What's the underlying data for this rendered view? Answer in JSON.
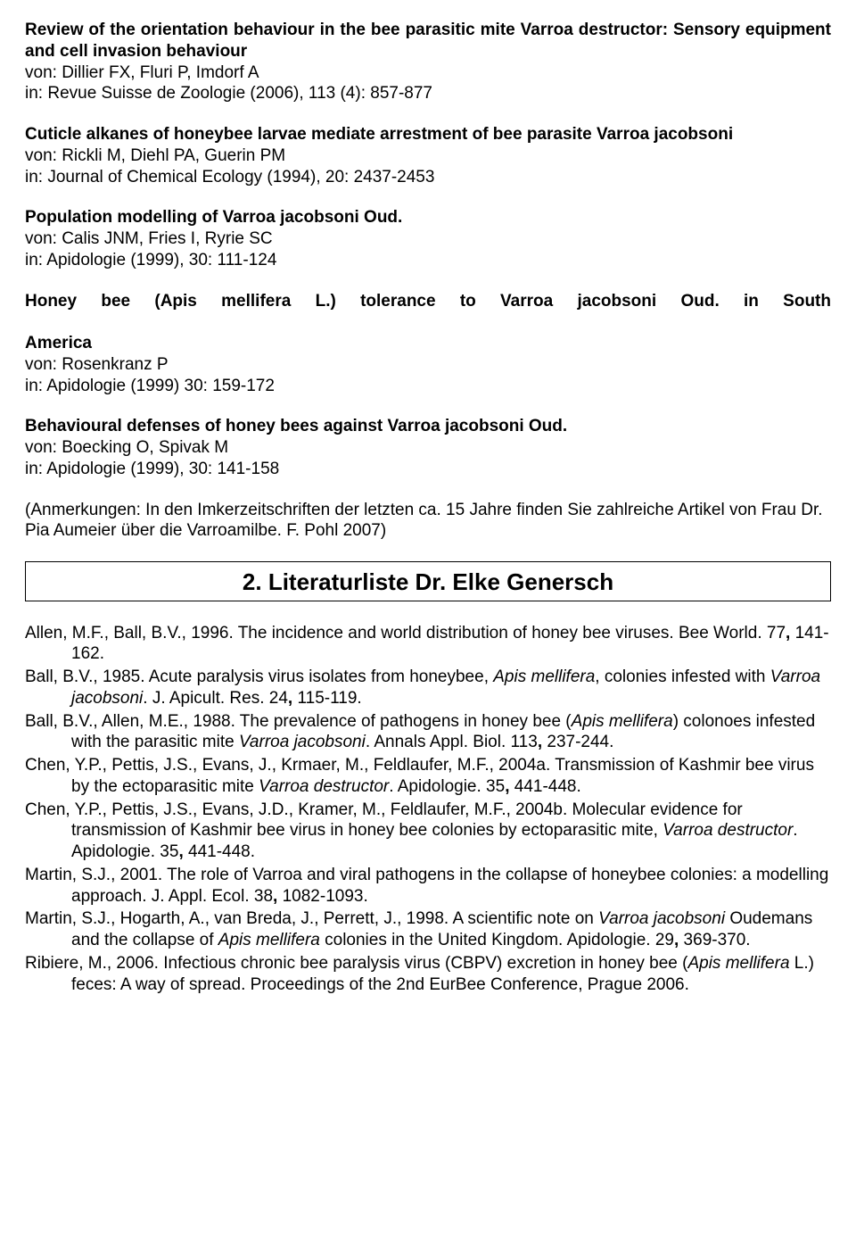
{
  "entries": [
    {
      "title": "Review of the orientation behaviour in the bee parasitic mite Varroa destructor: Sensory equipment and cell invasion behaviour",
      "authors": "von: Dillier FX, Fluri P, Imdorf A",
      "source": "in: Revue Suisse de Zoologie (2006), 113 (4): 857-877"
    },
    {
      "title": "Cuticle alkanes of honeybee larvae mediate arrestment of bee parasite Varroa jacobsoni",
      "authors": "von: Rickli M, Diehl PA, Guerin PM",
      "source": "in: Journal of Chemical Ecology (1994), 20: 2437-2453"
    },
    {
      "title": "Population modelling of Varroa jacobsoni Oud.",
      "authors": "von: Calis JNM, Fries I, Ryrie SC",
      "source": "in: Apidologie (1999), 30: 111-124"
    },
    {
      "title_line1": "Honey bee (Apis mellifera L.) tolerance to Varroa jacobsoni Oud. in South",
      "title_line2": "America",
      "authors": "von: Rosenkranz P",
      "source": "in: Apidologie (1999) 30: 159-172"
    },
    {
      "title": "Behavioural defenses of honey bees against Varroa jacobsoni Oud.",
      "authors": "von: Boecking O, Spivak M",
      "source": "in: Apidologie (1999), 30: 141-158"
    }
  ],
  "note": "(Anmerkungen: In den Imkerzeitschriften der letzten ca. 15 Jahre finden Sie zahlreiche Artikel von Frau Dr. Pia Aumeier über die Varroamilbe. F. Pohl 2007)",
  "section_heading": "2. Literaturliste Dr. Elke Genersch",
  "references": [
    {
      "plain_before": "Allen, M.F., Ball, B.V., 1996. The incidence and world distribution of honey bee viruses. Bee World. 77",
      "bold_comma": ",",
      "plain_after": " 141-162."
    },
    {
      "p1": "Ball, B.V., 1985. Acute paralysis virus isolates from honeybee, ",
      "i1": "Apis mellifera",
      "p2": ", colonies infested with ",
      "i2": "Varroa jacobsoni",
      "p3": ". J. Apicult. Res. 24",
      "bold_comma": ",",
      "p4": " 115-119."
    },
    {
      "p1": "Ball, B.V., Allen, M.E., 1988. The prevalence of pathogens in honey bee (",
      "i1": "Apis mellifera",
      "p2": ") colonoes infested with the parasitic mite ",
      "i2": "Varroa jacobsoni",
      "p3": ". Annals Appl. Biol. 113",
      "bold_comma": ",",
      "p4": " 237-244."
    },
    {
      "p1": "Chen, Y.P., Pettis, J.S., Evans, J., Krmaer, M., Feldlaufer, M.F., 2004a. Transmission of Kashmir bee virus by the ectoparasitic mite ",
      "i1": "Varroa destructor",
      "p2": ". Apidologie. 35",
      "bold_comma": ",",
      "p3": " 441-448."
    },
    {
      "p1": "Chen, Y.P., Pettis, J.S., Evans, J.D., Kramer, M., Feldlaufer, M.F., 2004b. Molecular evidence for transmission of Kashmir bee virus in honey bee colonies by ectoparasitic mite, ",
      "i1": "Varroa destructor",
      "p2": ". Apidologie. 35",
      "bold_comma": ",",
      "p3": " 441-448."
    },
    {
      "p1": "Martin, S.J., 2001. The role of Varroa and viral pathogens in the collapse of honeybee colonies: a modelling approach. J. Appl. Ecol. 38",
      "bold_comma": ",",
      "p2": " 1082-1093."
    },
    {
      "p1": "Martin, S.J., Hogarth, A., van Breda, J., Perrett, J., 1998. A scientific note on ",
      "i1": "Varroa jacobsoni",
      "p2": " Oudemans and the collapse of ",
      "i2": "Apis mellifera",
      "p3": " colonies in the United Kingdom. Apidologie. 29",
      "bold_comma": ",",
      "p4": " 369-370."
    },
    {
      "p1": "Ribiere, M., 2006. Infectious chronic bee paralysis virus (CBPV) excretion in honey bee (",
      "i1": "Apis mellifera",
      "p2": " L.) feces: A way of spread.  Proceedings of the 2nd EurBee Conference, Prague 2006."
    }
  ]
}
